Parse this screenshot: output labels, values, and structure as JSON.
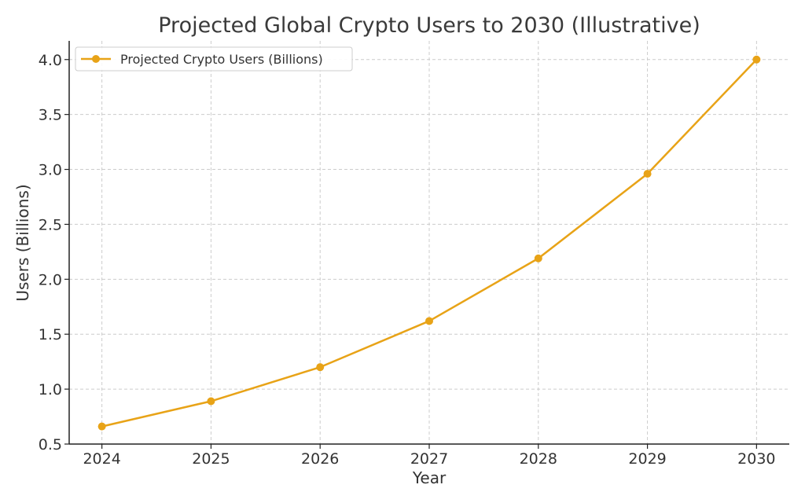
{
  "chart_data": {
    "type": "line",
    "title": "Projected Global Crypto Users to 2030 (Illustrative)",
    "xlabel": "Year",
    "ylabel": "Users (Billions)",
    "x": [
      2024,
      2025,
      2026,
      2027,
      2028,
      2029,
      2030
    ],
    "x_ticks": [
      "2024",
      "2025",
      "2026",
      "2027",
      "2028",
      "2029",
      "2030"
    ],
    "xlim": [
      2023.7,
      2030.3
    ],
    "ylim": [
      0.5,
      4.17
    ],
    "y_ticks": [
      "0.5",
      "1.0",
      "1.5",
      "2.0",
      "2.5",
      "3.0",
      "3.5",
      "4.0"
    ],
    "y_tick_values": [
      0.5,
      1.0,
      1.5,
      2.0,
      2.5,
      3.0,
      3.5,
      4.0
    ],
    "grid": true,
    "legend_position": "top-left",
    "series": [
      {
        "name": "Projected Crypto Users (Billions)",
        "color": "#e8a317",
        "marker": "circle",
        "values": [
          0.66,
          0.89,
          1.2,
          1.62,
          2.19,
          2.96,
          4.0
        ]
      }
    ]
  }
}
